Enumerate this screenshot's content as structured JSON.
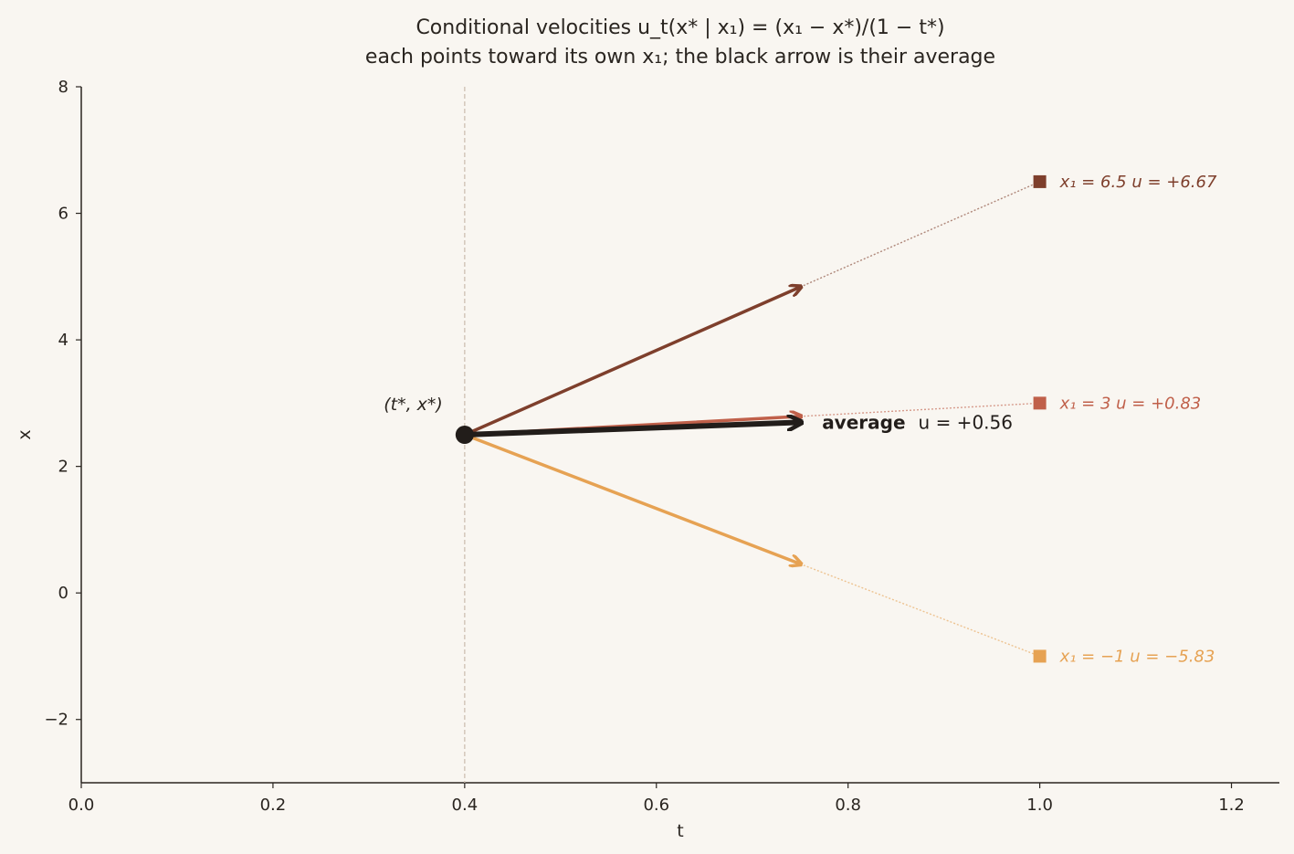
{
  "chart_data": {
    "type": "line",
    "title": "Conditional velocities u_t(x* | x₁) = (x₁ − x*)/(1 − t*)",
    "subtitle": "each points toward its own x₁; the black arrow is their average",
    "xlabel": "t",
    "ylabel": "x",
    "xlim": [
      0.0,
      1.25
    ],
    "ylim": [
      -3,
      8
    ],
    "xticks": [
      "0.0",
      "0.2",
      "0.4",
      "0.6",
      "0.8",
      "1.0",
      "1.2"
    ],
    "yticks": [
      "−2",
      "0",
      "2",
      "4",
      "6",
      "8"
    ],
    "grid": false,
    "point": {
      "t": 0.4,
      "x": 2.5,
      "label": "(t*, x*)"
    },
    "series": [
      {
        "x1": 6.5,
        "u": 6.67,
        "label": "x₁ = 6.5   u = +6.67",
        "color": "#7e3f2c"
      },
      {
        "x1": 3,
        "u": 0.83,
        "label": "x₁ = 3   u = +0.83",
        "color": "#c0604a"
      },
      {
        "x1": -1,
        "u": -5.83,
        "label": "x₁ = −1   u = −5.83",
        "color": "#e6a253"
      }
    ],
    "average": {
      "u": 0.56,
      "label_bold": "average",
      "label_value": "u = +0.56",
      "color": "#221d1a"
    },
    "arrow_dt": 0.35
  }
}
